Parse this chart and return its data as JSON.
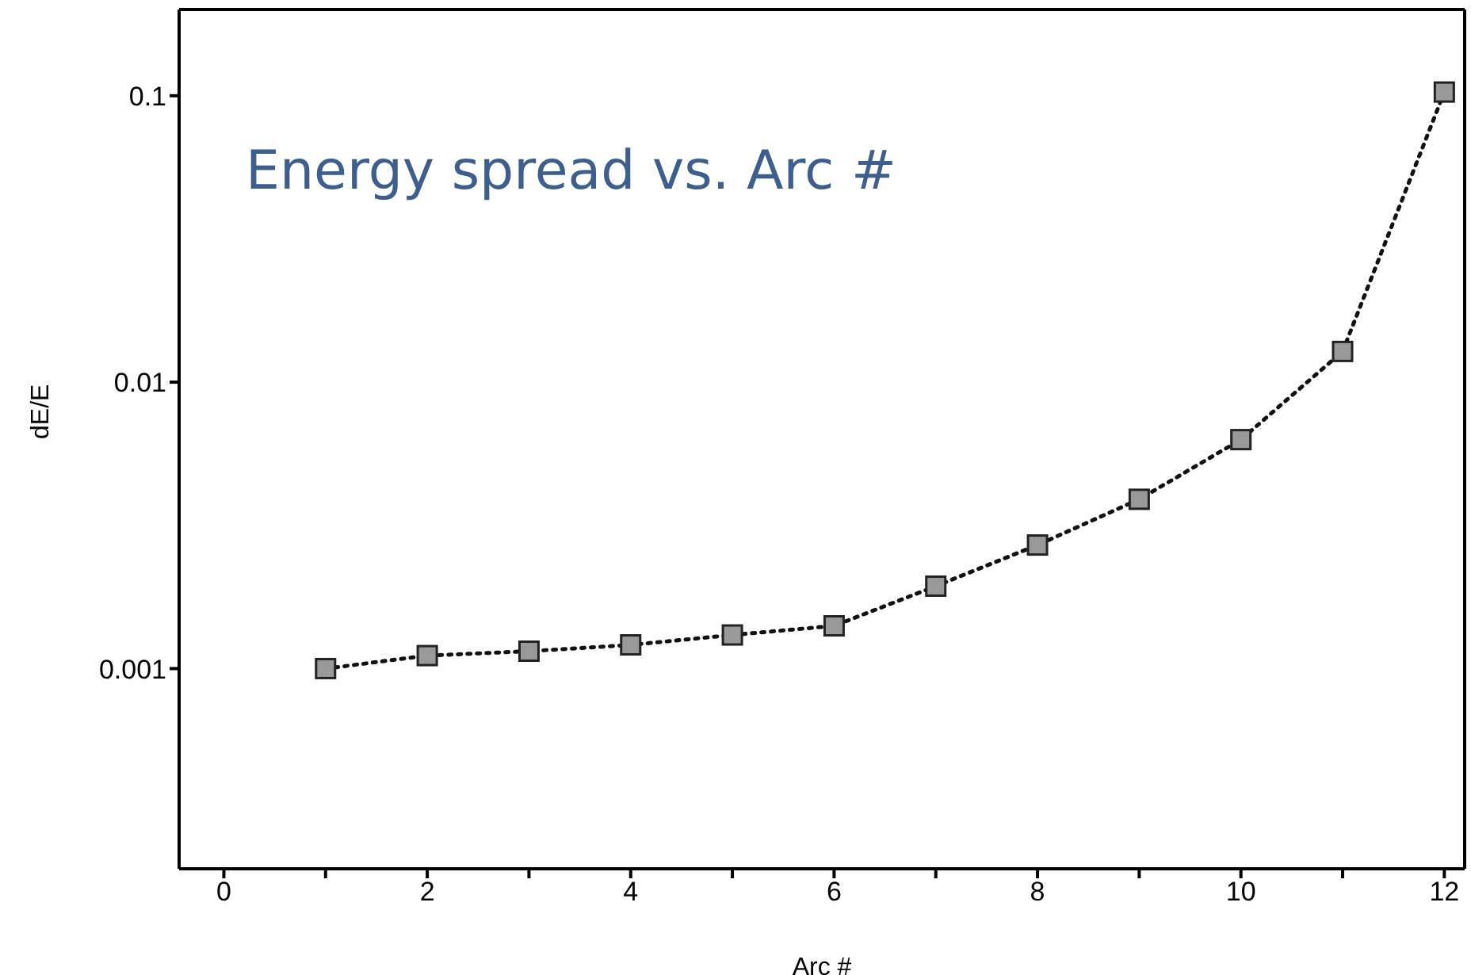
{
  "chart_data": {
    "type": "line",
    "title": "Energy spread vs. Arc #",
    "xlabel": "Arc #",
    "ylabel": "dE/E",
    "x": [
      1,
      2,
      3,
      4,
      5,
      6,
      7,
      8,
      9,
      10,
      11,
      12
    ],
    "series": [
      {
        "color": "#999999",
        "values": [
          0.001,
          0.00111,
          0.00115,
          0.00121,
          0.00131,
          0.00141,
          0.00194,
          0.0027,
          0.0039,
          0.0063,
          0.0128,
          0.103
        ]
      }
    ],
    "xlim": [
      -0.44,
      12.2
    ],
    "xticks": [
      0,
      {
        "value": 1,
        "label": null
      },
      2,
      {
        "value": 3,
        "label": null
      },
      4,
      {
        "value": 5,
        "label": null
      },
      6,
      {
        "value": 7,
        "label": null
      },
      8,
      {
        "value": 9,
        "label": null
      },
      10,
      {
        "value": 11,
        "label": null
      },
      12
    ],
    "ylim": [
      0.0002,
      0.2
    ],
    "yticks": [
      0.001,
      0.01,
      0.1
    ],
    "log": "y",
    "grid": false,
    "legend": false,
    "marker": "square",
    "line_style": "dotted"
  }
}
